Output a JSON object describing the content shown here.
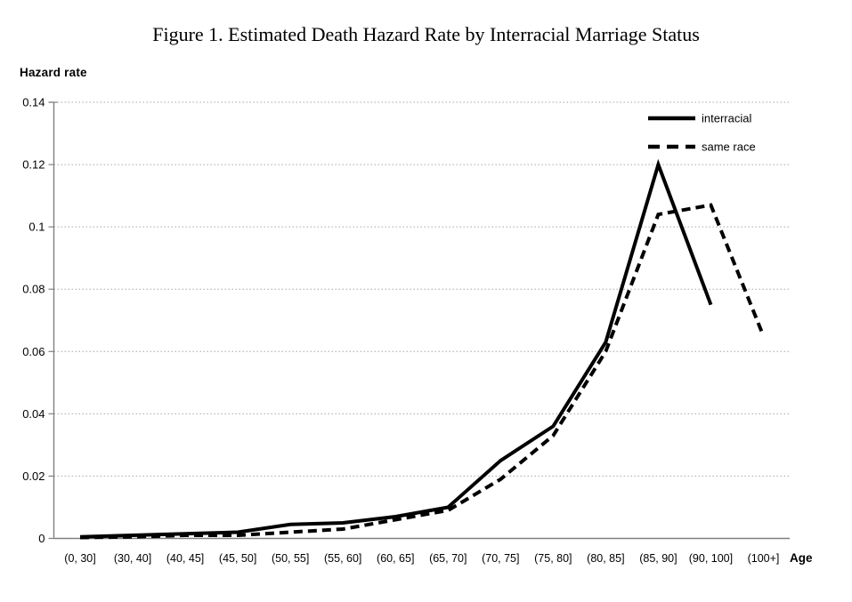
{
  "page": {
    "kind": "figure",
    "background": "#ffffff"
  },
  "chart_data": {
    "type": "line",
    "title": "Figure 1. Estimated Death Hazard Rate by Interracial Marriage Status",
    "xlabel": "Age",
    "ylabel": "Hazard rate",
    "ylim": [
      0,
      0.14
    ],
    "grid": "horizontal-dotted",
    "legend_position": "top-right",
    "categories": [
      "(0, 30]",
      "(30, 40]",
      "(40, 45]",
      "(45, 50]",
      "(50, 55]",
      "(55, 60]",
      "(60, 65]",
      "(65, 70]",
      "(70, 75]",
      "(75, 80]",
      "(80, 85]",
      "(85, 90]",
      "(90, 100]",
      "(100+]"
    ],
    "y_ticks": [
      {
        "value": 0,
        "label": "0"
      },
      {
        "value": 0.02,
        "label": "0.02"
      },
      {
        "value": 0.04,
        "label": "0.04"
      },
      {
        "value": 0.06,
        "label": "0.06"
      },
      {
        "value": 0.08,
        "label": "0.08"
      },
      {
        "value": 0.1,
        "label": "0.1"
      },
      {
        "value": 0.12,
        "label": "0.12"
      },
      {
        "value": 0.14,
        "label": "0.14"
      }
    ],
    "series": [
      {
        "name": "interracial",
        "style": "solid",
        "color": "#000000",
        "values": [
          0.0005,
          0.001,
          0.0015,
          0.002,
          0.0045,
          0.005,
          0.007,
          0.01,
          0.025,
          0.036,
          0.063,
          0.12,
          0.075,
          null
        ]
      },
      {
        "name": "same race",
        "style": "dashed",
        "color": "#000000",
        "values": [
          0.0003,
          0.0005,
          0.001,
          0.001,
          0.002,
          0.003,
          0.006,
          0.009,
          0.019,
          0.033,
          0.06,
          0.104,
          0.107,
          0.065
        ]
      }
    ],
    "colors": {
      "axis": "#808080",
      "gridline": "#a6a6a6",
      "series": "#000000"
    }
  }
}
